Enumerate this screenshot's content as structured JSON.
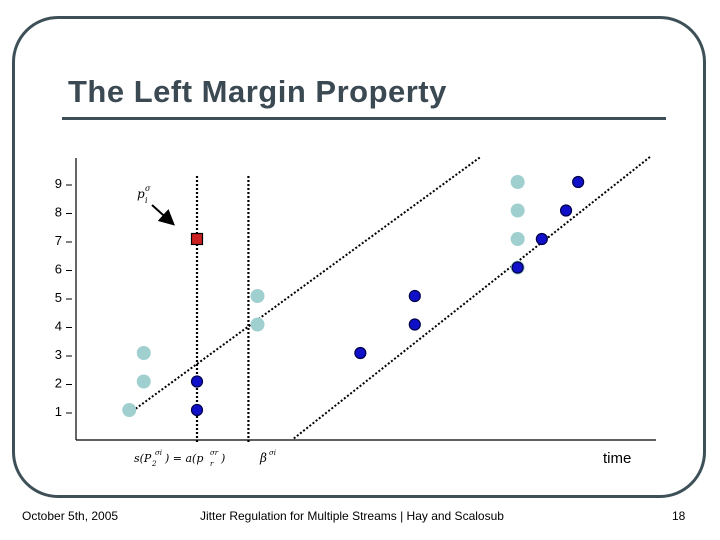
{
  "slide": {
    "title": "The Left Margin Property",
    "footer_date": "October 5th, 2005",
    "footer_center": "Jitter Regulation for Multiple Streams | Hay and Scalosub",
    "page_number": "18"
  },
  "colors": {
    "light_marker": "#9fcfcf",
    "dark_marker": "#1010c8",
    "dark_marker_stroke": "#00004a",
    "red_marker": "#cc2020",
    "frame": "#3d4f57",
    "title": "#3b4a52"
  },
  "chart_data": {
    "type": "scatter",
    "title": "The Left Margin Property",
    "xlabel": "time",
    "ylabel": "",
    "ylim": [
      0,
      9.5
    ],
    "y_ticks": [
      "1",
      "2",
      "3",
      "4",
      "5",
      "6",
      "7",
      "8",
      "9"
    ],
    "series": [
      {
        "name": "light",
        "points": [
          {
            "x": 0.88,
            "y": 1
          },
          {
            "x": 1.12,
            "y": 2
          },
          {
            "x": 1.12,
            "y": 3
          },
          {
            "x": 3.0,
            "y": 4
          },
          {
            "x": 3.0,
            "y": 5
          },
          {
            "x": 7.3,
            "y": 6
          },
          {
            "x": 7.3,
            "y": 7
          },
          {
            "x": 7.3,
            "y": 8
          },
          {
            "x": 7.3,
            "y": 9
          }
        ]
      },
      {
        "name": "dark",
        "points": [
          {
            "x": 2.0,
            "y": 1
          },
          {
            "x": 2.0,
            "y": 2
          },
          {
            "x": 4.7,
            "y": 3
          },
          {
            "x": 5.6,
            "y": 4
          },
          {
            "x": 5.6,
            "y": 5
          },
          {
            "x": 7.3,
            "y": 6
          },
          {
            "x": 7.7,
            "y": 7
          },
          {
            "x": 8.1,
            "y": 8
          },
          {
            "x": 8.3,
            "y": 9
          }
        ]
      },
      {
        "name": "red",
        "points": [
          {
            "x": 2.0,
            "y": 7
          }
        ]
      }
    ],
    "vertical_lines": [
      {
        "name": "vline-start",
        "x": 2.0
      },
      {
        "name": "vline-departure",
        "x": 2.85
      }
    ],
    "diagonal_lines": [
      {
        "name": "diagonal-left",
        "x1": 0.88,
        "y1": 0.88,
        "x2": 6.7,
        "y2": 9.9
      },
      {
        "name": "diagonal-right",
        "x1": 3.6,
        "y1": 0,
        "x2": 9.5,
        "y2": 9.9
      }
    ],
    "annotations": {
      "p_label": "p",
      "p_label_sup": "σ",
      "p_label_sub": "i",
      "s_expr": "s(P",
      "s_expr_sub": "2",
      "s_expr_sup": "σi",
      "eq": ") = a(p",
      "a_sub": "r",
      "a_sup": "σr",
      "close": ")",
      "beta": "β",
      "beta_sup": "σi"
    },
    "grid": false,
    "legend": "none"
  }
}
